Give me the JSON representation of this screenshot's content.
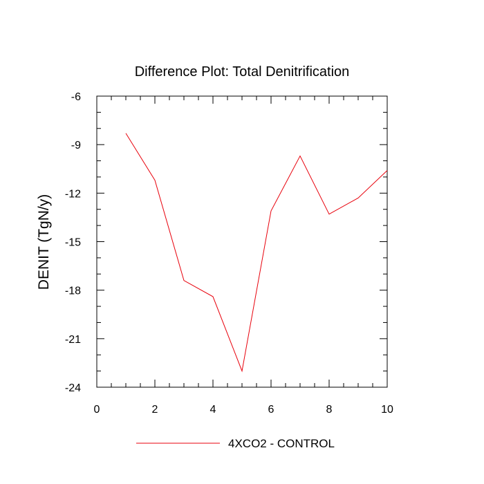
{
  "chart_data": {
    "type": "line",
    "title": "Difference Plot: Total Denitrification",
    "xlabel": "",
    "ylabel": "DENIT  (TgN/y)",
    "xlim": [
      0,
      10
    ],
    "ylim": [
      -24,
      -6
    ],
    "x_ticks": [
      0,
      2,
      4,
      6,
      8,
      10
    ],
    "x_tick_labels": [
      "0",
      "2",
      "4",
      "6",
      "8",
      "10"
    ],
    "y_ticks": [
      -6,
      -9,
      -12,
      -15,
      -18,
      -21,
      -24
    ],
    "y_tick_labels": [
      "-6",
      "-9",
      "-12",
      "-15",
      "-18",
      "-21",
      "-24"
    ],
    "grid": false,
    "legend_position": "bottom-center",
    "series": [
      {
        "name": "4XCO2 - CONTROL",
        "color": "#e8000b",
        "x": [
          1,
          2,
          3,
          4,
          5,
          6,
          7,
          8,
          9,
          10
        ],
        "values": [
          -8.3,
          -11.2,
          -17.4,
          -18.4,
          -23.0,
          -13.1,
          -9.7,
          -13.3,
          -12.3,
          -10.6
        ]
      }
    ]
  }
}
